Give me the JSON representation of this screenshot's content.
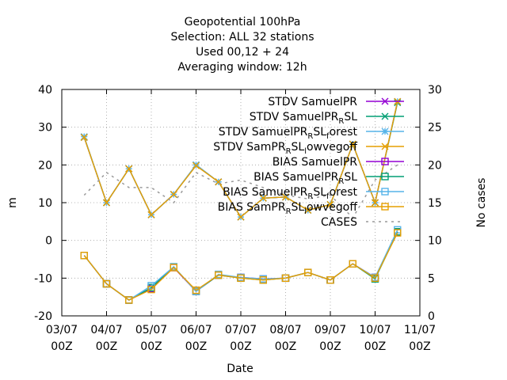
{
  "chart_data": {
    "type": "line",
    "title_lines": [
      "Geopotential 100hPa",
      "Selection: ALL      32 stations",
      "Used  00,12  + 24",
      "Averaging window: 12h"
    ],
    "xlabel": "Date",
    "ylabel": "m",
    "y2label": "No cases",
    "x_ticks": [
      {
        "x": 0,
        "line1": "03/07",
        "line2": "00Z"
      },
      {
        "x": 1,
        "line1": "04/07",
        "line2": "00Z"
      },
      {
        "x": 2,
        "line1": "05/07",
        "line2": "00Z"
      },
      {
        "x": 3,
        "line1": "06/07",
        "line2": "00Z"
      },
      {
        "x": 4,
        "line1": "07/07",
        "line2": "00Z"
      },
      {
        "x": 5,
        "line1": "08/07",
        "line2": "00Z"
      },
      {
        "x": 6,
        "line1": "09/07",
        "line2": "00Z"
      },
      {
        "x": 7,
        "line1": "10/07",
        "line2": "00Z"
      },
      {
        "x": 8,
        "line1": "11/07",
        "line2": "00Z"
      }
    ],
    "xlim": [
      0,
      8
    ],
    "ylim": [
      -20,
      40
    ],
    "y_ticks": [
      -20,
      -10,
      0,
      10,
      20,
      30,
      40
    ],
    "y2lim": [
      0,
      30
    ],
    "y2_ticks": [
      0,
      5,
      10,
      15,
      20,
      25,
      30
    ],
    "grid": true,
    "legend_position": "top-right",
    "x": [
      0.5,
      1.0,
      1.5,
      2.0,
      2.5,
      3.0,
      3.5,
      4.0,
      4.5,
      5.0,
      5.5,
      6.0,
      6.5,
      7.0,
      7.5
    ],
    "series": [
      {
        "name": "STDV SamuelPR",
        "axis": "y1",
        "color": "#9400d3",
        "marker": "cross",
        "values": [
          27.3,
          10.0,
          19.0,
          6.8,
          12.2,
          20.0,
          15.5,
          6.2,
          11.2,
          11.5,
          8.0,
          9.5,
          25.5,
          10.0,
          36.8
        ]
      },
      {
        "name": "STDV SamuelPR_RSL",
        "axis": "y1",
        "color": "#009e73",
        "marker": "cross",
        "values": [
          27.3,
          10.0,
          19.0,
          6.8,
          12.2,
          20.0,
          15.5,
          6.2,
          11.2,
          11.5,
          8.0,
          9.5,
          25.5,
          10.0,
          36.5
        ]
      },
      {
        "name": "STDV SamuelPR_RSL_forest",
        "axis": "y1",
        "color": "#56b4e9",
        "marker": "star",
        "values": [
          27.5,
          10.0,
          19.0,
          6.8,
          12.2,
          20.0,
          15.5,
          6.2,
          11.2,
          11.5,
          8.0,
          9.5,
          25.5,
          10.0,
          36.8
        ]
      },
      {
        "name": "STDV SamPR_RSL_lowvegoff",
        "axis": "y1",
        "color": "#e69f00",
        "marker": "cross",
        "values": [
          27.3,
          10.0,
          19.0,
          6.8,
          12.2,
          19.8,
          15.5,
          6.2,
          11.2,
          11.5,
          8.0,
          9.5,
          25.5,
          10.0,
          36.8
        ]
      },
      {
        "name": "BIAS SamuelPR",
        "axis": "y1",
        "color": "#9400d3",
        "marker": "square",
        "values": [
          -4.0,
          -11.5,
          -15.8,
          -12.8,
          -7.2,
          -13.5,
          -9.2,
          -9.8,
          -10.2,
          -10.0,
          -8.5,
          -10.5,
          -6.2,
          -9.8,
          2.3
        ]
      },
      {
        "name": "BIAS SamuelPR_RSL",
        "axis": "y1",
        "color": "#009e73",
        "marker": "square",
        "values": [
          -4.0,
          -11.5,
          -15.8,
          -12.5,
          -7.0,
          -13.5,
          -9.2,
          -10.0,
          -10.5,
          -10.0,
          -8.5,
          -10.5,
          -6.2,
          -10.2,
          2.3
        ]
      },
      {
        "name": "BIAS SamuelPR_RSL_forest",
        "axis": "y1",
        "color": "#56b4e9",
        "marker": "square",
        "values": [
          -4.0,
          -11.5,
          -15.8,
          -12.0,
          -7.0,
          -13.5,
          -9.0,
          -9.8,
          -10.2,
          -10.0,
          -8.5,
          -10.5,
          -6.2,
          -9.8,
          2.8
        ]
      },
      {
        "name": "BIAS SamPR_RSL_lowvegoff",
        "axis": "y1",
        "color": "#e69f00",
        "marker": "square",
        "values": [
          -4.0,
          -11.5,
          -15.8,
          -13.0,
          -7.2,
          -13.2,
          -9.2,
          -10.0,
          -10.5,
          -10.0,
          -8.5,
          -10.5,
          -6.2,
          -10.0,
          2.0
        ]
      },
      {
        "name": "CASES",
        "axis": "y2",
        "color": "#999999",
        "marker": "none",
        "dashed": true,
        "values": [
          16.0,
          19.0,
          17.0,
          17.0,
          15.0,
          19.0,
          17.5,
          18.0,
          17.0,
          16.0,
          15.5,
          16.0,
          13.0,
          18.0,
          20.0
        ]
      }
    ],
    "legend_entries": [
      {
        "parts": [
          [
            "STDV SamuelPR",
            false
          ]
        ],
        "color": "#9400d3",
        "marker": "cross"
      },
      {
        "parts": [
          [
            "STDV SamuelPR",
            false
          ],
          [
            "R",
            true
          ],
          [
            "SL",
            false
          ]
        ],
        "color": "#009e73",
        "marker": "cross"
      },
      {
        "parts": [
          [
            "STDV SamuelPR",
            false
          ],
          [
            "R",
            true
          ],
          [
            "SL",
            false
          ],
          [
            "f",
            true
          ],
          [
            "orest",
            false
          ]
        ],
        "color": "#56b4e9",
        "marker": "star"
      },
      {
        "parts": [
          [
            "STDV SamPR",
            false
          ],
          [
            "R",
            true
          ],
          [
            "SL",
            false
          ],
          [
            "l",
            true
          ],
          [
            "owvegoff",
            false
          ]
        ],
        "color": "#e69f00",
        "marker": "cross"
      },
      {
        "parts": [
          [
            "BIAS SamuelPR",
            false
          ]
        ],
        "color": "#9400d3",
        "marker": "square"
      },
      {
        "parts": [
          [
            "BIAS SamuelPR",
            false
          ],
          [
            "R",
            true
          ],
          [
            "SL",
            false
          ]
        ],
        "color": "#009e73",
        "marker": "square"
      },
      {
        "parts": [
          [
            "BIAS SamuelPR",
            false
          ],
          [
            "R",
            true
          ],
          [
            "SL",
            false
          ],
          [
            "f",
            true
          ],
          [
            "orest",
            false
          ]
        ],
        "color": "#56b4e9",
        "marker": "square"
      },
      {
        "parts": [
          [
            "BIAS SamPR",
            false
          ],
          [
            "R",
            true
          ],
          [
            "SL",
            false
          ],
          [
            "l",
            true
          ],
          [
            "owvegoff",
            false
          ]
        ],
        "color": "#e69f00",
        "marker": "square"
      },
      {
        "parts": [
          [
            "CASES",
            false
          ]
        ],
        "color": "#999999",
        "marker": "none",
        "dashed": true
      }
    ]
  }
}
